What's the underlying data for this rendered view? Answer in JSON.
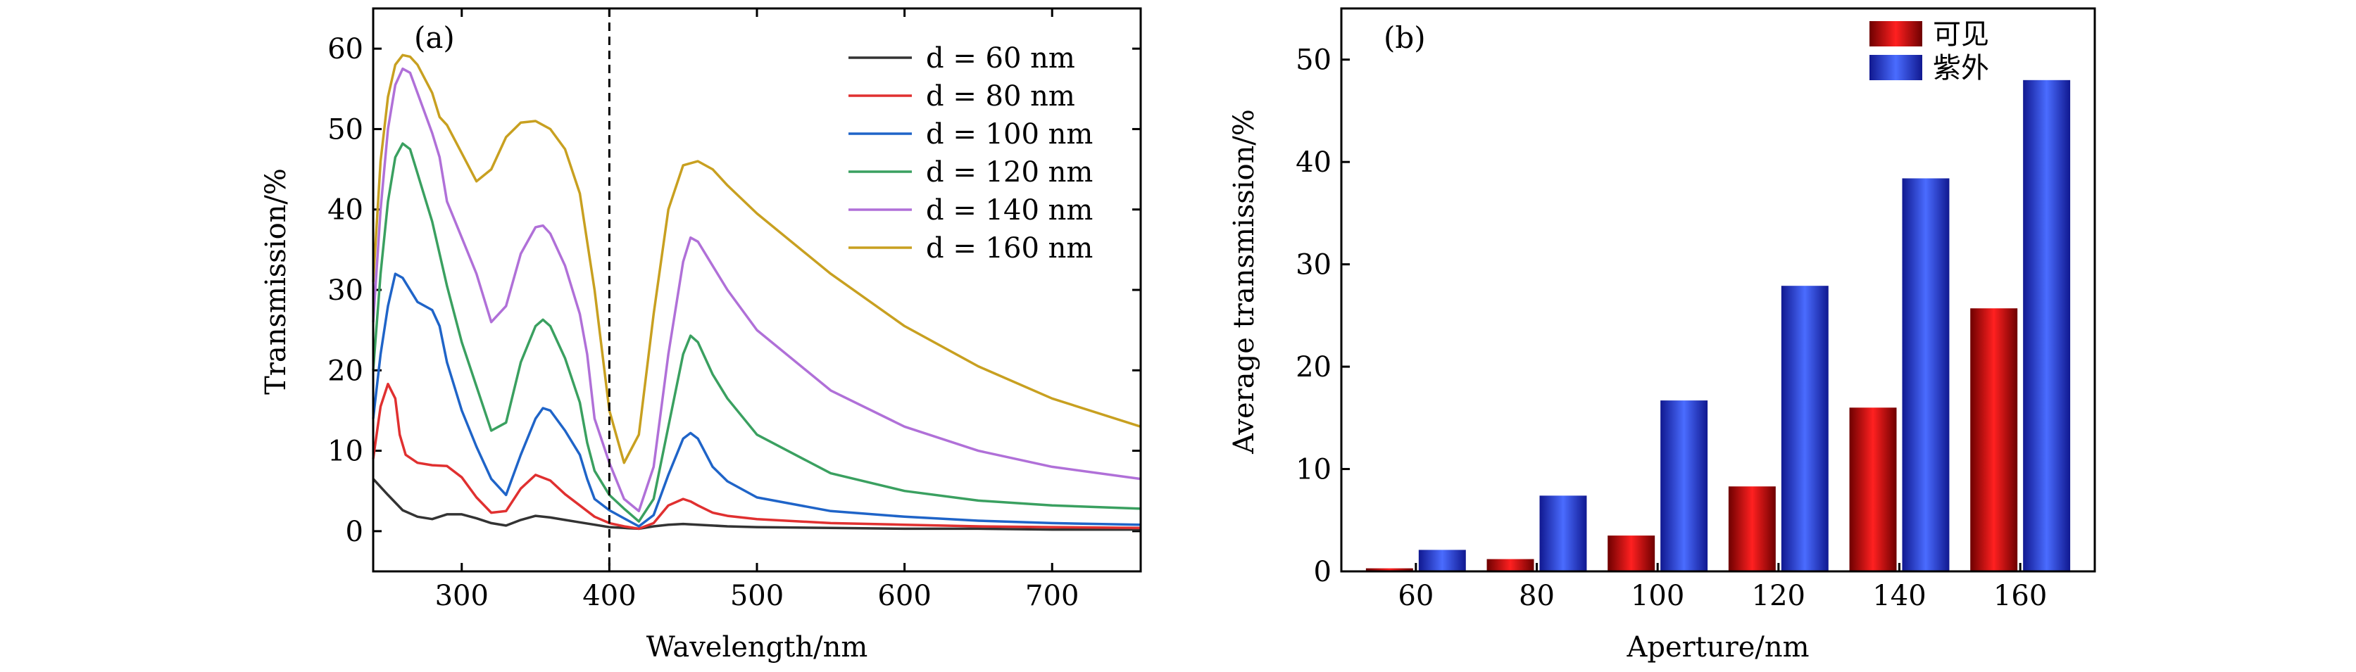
{
  "chart_data": [
    {
      "type": "line",
      "panel_label": "(a)",
      "xlabel": "Wavelength/nm",
      "ylabel": "Transmission/%",
      "xlim": [
        240,
        760
      ],
      "ylim": [
        -5,
        65
      ],
      "xticks": [
        300,
        400,
        500,
        600,
        700
      ],
      "yticks": [
        0,
        10,
        20,
        30,
        40,
        50,
        60
      ],
      "vline_x": 400,
      "legend_position": "top-right",
      "series": [
        {
          "name": "d = 60 nm",
          "color": "#333333",
          "points": [
            [
              240,
              6.5
            ],
            [
              250,
              4.5
            ],
            [
              260,
              2.6
            ],
            [
              270,
              1.8
            ],
            [
              280,
              1.5
            ],
            [
              290,
              2.1
            ],
            [
              300,
              2.1
            ],
            [
              310,
              1.6
            ],
            [
              320,
              1.0
            ],
            [
              330,
              0.7
            ],
            [
              340,
              1.4
            ],
            [
              350,
              1.9
            ],
            [
              360,
              1.7
            ],
            [
              370,
              1.4
            ],
            [
              380,
              1.1
            ],
            [
              390,
              0.8
            ],
            [
              400,
              0.5
            ],
            [
              410,
              0.4
            ],
            [
              420,
              0.3
            ],
            [
              430,
              0.6
            ],
            [
              440,
              0.8
            ],
            [
              450,
              0.9
            ],
            [
              460,
              0.8
            ],
            [
              480,
              0.6
            ],
            [
              500,
              0.5
            ],
            [
              550,
              0.4
            ],
            [
              600,
              0.3
            ],
            [
              650,
              0.3
            ],
            [
              700,
              0.2
            ],
            [
              760,
              0.2
            ]
          ]
        },
        {
          "name": "d = 80 nm",
          "color": "#e03030",
          "points": [
            [
              240,
              9.0
            ],
            [
              245,
              15.5
            ],
            [
              250,
              18.3
            ],
            [
              255,
              16.5
            ],
            [
              258,
              12.0
            ],
            [
              262,
              9.5
            ],
            [
              270,
              8.5
            ],
            [
              280,
              8.2
            ],
            [
              290,
              8.1
            ],
            [
              300,
              6.7
            ],
            [
              310,
              4.2
            ],
            [
              320,
              2.3
            ],
            [
              330,
              2.5
            ],
            [
              340,
              5.3
            ],
            [
              350,
              7.0
            ],
            [
              360,
              6.3
            ],
            [
              370,
              4.6
            ],
            [
              380,
              3.2
            ],
            [
              390,
              1.8
            ],
            [
              400,
              1.0
            ],
            [
              410,
              0.6
            ],
            [
              420,
              0.3
            ],
            [
              430,
              1.0
            ],
            [
              440,
              3.2
            ],
            [
              450,
              4.0
            ],
            [
              455,
              3.7
            ],
            [
              460,
              3.2
            ],
            [
              470,
              2.3
            ],
            [
              480,
              1.9
            ],
            [
              500,
              1.5
            ],
            [
              550,
              1.0
            ],
            [
              600,
              0.8
            ],
            [
              650,
              0.6
            ],
            [
              700,
              0.5
            ],
            [
              760,
              0.4
            ]
          ]
        },
        {
          "name": "d = 100 nm",
          "color": "#1f64c8",
          "points": [
            [
              240,
              14.0
            ],
            [
              245,
              22.0
            ],
            [
              250,
              28.0
            ],
            [
              255,
              32.0
            ],
            [
              260,
              31.5
            ],
            [
              270,
              28.5
            ],
            [
              280,
              27.5
            ],
            [
              285,
              25.5
            ],
            [
              290,
              21.0
            ],
            [
              300,
              15.0
            ],
            [
              310,
              10.5
            ],
            [
              320,
              6.5
            ],
            [
              330,
              4.5
            ],
            [
              340,
              9.5
            ],
            [
              350,
              14.0
            ],
            [
              355,
              15.3
            ],
            [
              360,
              15.0
            ],
            [
              370,
              12.5
            ],
            [
              380,
              9.5
            ],
            [
              385,
              6.5
            ],
            [
              390,
              4.0
            ],
            [
              400,
              2.6
            ],
            [
              410,
              1.6
            ],
            [
              420,
              0.6
            ],
            [
              430,
              2.0
            ],
            [
              440,
              7.0
            ],
            [
              450,
              11.5
            ],
            [
              455,
              12.2
            ],
            [
              460,
              11.5
            ],
            [
              470,
              8.0
            ],
            [
              480,
              6.2
            ],
            [
              500,
              4.2
            ],
            [
              550,
              2.5
            ],
            [
              600,
              1.8
            ],
            [
              650,
              1.3
            ],
            [
              700,
              1.0
            ],
            [
              760,
              0.8
            ]
          ]
        },
        {
          "name": "d = 120 nm",
          "color": "#3aa060",
          "points": [
            [
              240,
              20.0
            ],
            [
              245,
              32.0
            ],
            [
              250,
              41.0
            ],
            [
              255,
              46.5
            ],
            [
              260,
              48.2
            ],
            [
              265,
              47.5
            ],
            [
              270,
              44.5
            ],
            [
              280,
              38.5
            ],
            [
              290,
              30.5
            ],
            [
              300,
              23.5
            ],
            [
              310,
              18.0
            ],
            [
              320,
              12.5
            ],
            [
              330,
              13.5
            ],
            [
              340,
              21.0
            ],
            [
              350,
              25.5
            ],
            [
              355,
              26.3
            ],
            [
              360,
              25.5
            ],
            [
              370,
              21.5
            ],
            [
              380,
              16.0
            ],
            [
              385,
              11.0
            ],
            [
              390,
              7.5
            ],
            [
              400,
              4.5
            ],
            [
              410,
              2.8
            ],
            [
              420,
              1.2
            ],
            [
              430,
              4.0
            ],
            [
              440,
              13.0
            ],
            [
              450,
              22.0
            ],
            [
              455,
              24.3
            ],
            [
              460,
              23.5
            ],
            [
              470,
              19.5
            ],
            [
              480,
              16.5
            ],
            [
              500,
              12.0
            ],
            [
              550,
              7.2
            ],
            [
              600,
              5.0
            ],
            [
              650,
              3.8
            ],
            [
              700,
              3.2
            ],
            [
              760,
              2.8
            ]
          ]
        },
        {
          "name": "d = 140 nm",
          "color": "#b070d8",
          "points": [
            [
              240,
              26.0
            ],
            [
              245,
              40.0
            ],
            [
              250,
              50.0
            ],
            [
              255,
              55.5
            ],
            [
              260,
              57.5
            ],
            [
              265,
              57.0
            ],
            [
              270,
              54.5
            ],
            [
              280,
              49.5
            ],
            [
              285,
              46.5
            ],
            [
              290,
              41.0
            ],
            [
              300,
              36.5
            ],
            [
              310,
              32.0
            ],
            [
              320,
              26.0
            ],
            [
              330,
              28.0
            ],
            [
              340,
              34.5
            ],
            [
              350,
              37.8
            ],
            [
              355,
              38.0
            ],
            [
              360,
              37.0
            ],
            [
              370,
              33.0
            ],
            [
              380,
              27.0
            ],
            [
              385,
              22.0
            ],
            [
              390,
              14.0
            ],
            [
              400,
              8.5
            ],
            [
              410,
              4.0
            ],
            [
              420,
              2.5
            ],
            [
              430,
              8.0
            ],
            [
              440,
              22.0
            ],
            [
              450,
              33.5
            ],
            [
              455,
              36.5
            ],
            [
              460,
              36.0
            ],
            [
              470,
              33.0
            ],
            [
              480,
              30.0
            ],
            [
              500,
              25.0
            ],
            [
              550,
              17.5
            ],
            [
              600,
              13.0
            ],
            [
              650,
              10.0
            ],
            [
              700,
              8.0
            ],
            [
              760,
              6.5
            ]
          ]
        },
        {
          "name": "d = 160 nm",
          "color": "#c8a020",
          "points": [
            [
              240,
              31.0
            ],
            [
              245,
              46.0
            ],
            [
              250,
              54.0
            ],
            [
              255,
              58.0
            ],
            [
              260,
              59.2
            ],
            [
              265,
              59.0
            ],
            [
              270,
              58.0
            ],
            [
              280,
              54.5
            ],
            [
              285,
              51.5
            ],
            [
              290,
              50.5
            ],
            [
              300,
              47.0
            ],
            [
              310,
              43.5
            ],
            [
              320,
              45.0
            ],
            [
              330,
              49.0
            ],
            [
              340,
              50.8
            ],
            [
              350,
              51.0
            ],
            [
              360,
              50.0
            ],
            [
              370,
              47.5
            ],
            [
              380,
              42.0
            ],
            [
              385,
              36.0
            ],
            [
              390,
              30.0
            ],
            [
              400,
              15.0
            ],
            [
              410,
              8.5
            ],
            [
              420,
              12.0
            ],
            [
              430,
              27.0
            ],
            [
              440,
              40.0
            ],
            [
              450,
              45.5
            ],
            [
              460,
              46.0
            ],
            [
              470,
              45.0
            ],
            [
              480,
              43.0
            ],
            [
              500,
              39.5
            ],
            [
              550,
              32.0
            ],
            [
              600,
              25.5
            ],
            [
              650,
              20.5
            ],
            [
              700,
              16.5
            ],
            [
              760,
              13.0
            ]
          ]
        }
      ]
    },
    {
      "type": "bar",
      "panel_label": "(b)",
      "xlabel": "Aperture/nm",
      "ylabel": "Average transmission/%",
      "ylim": [
        0,
        55
      ],
      "yticks": [
        0,
        10,
        20,
        30,
        40,
        50
      ],
      "categories": [
        "60",
        "80",
        "100",
        "120",
        "140",
        "160"
      ],
      "legend_position": "top-right",
      "series": [
        {
          "name": "可见",
          "color": "#c80000",
          "values": [
            0.3,
            1.2,
            3.5,
            8.3,
            16.0,
            25.7
          ]
        },
        {
          "name": "紫外",
          "color": "#2030e0",
          "values": [
            2.1,
            7.4,
            16.7,
            27.9,
            38.4,
            48.0
          ]
        }
      ]
    }
  ]
}
